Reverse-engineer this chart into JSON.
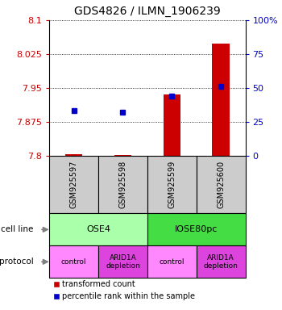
{
  "title": "GDS4826 / ILMN_1906239",
  "samples": [
    "GSM925597",
    "GSM925598",
    "GSM925599",
    "GSM925600"
  ],
  "ylim_left": [
    7.8,
    8.1
  ],
  "ylim_right": [
    0,
    100
  ],
  "yticks_left": [
    7.8,
    7.875,
    7.95,
    8.025,
    8.1
  ],
  "ytick_labels_left": [
    "7.8",
    "7.875",
    "7.95",
    "8.025",
    "8.1"
  ],
  "yticks_right": [
    0,
    25,
    50,
    75,
    100
  ],
  "ytick_labels_right": [
    "0",
    "25",
    "50",
    "75",
    "100%"
  ],
  "transformed_counts": [
    7.802,
    7.801,
    7.935,
    8.048
  ],
  "tc_base": 7.8,
  "percentile_ranks": [
    33,
    32,
    44,
    51
  ],
  "cell_line_labels": [
    "OSE4",
    "IOSE80pc"
  ],
  "cell_line_spans": [
    [
      0,
      2
    ],
    [
      2,
      4
    ]
  ],
  "cell_line_colors": [
    "#aaffaa",
    "#44dd44"
  ],
  "protocol_labels": [
    "control",
    "ARID1A\ndepletion",
    "control",
    "ARID1A\ndepletion"
  ],
  "protocol_colors": [
    "#ff88ff",
    "#dd44dd",
    "#ff88ff",
    "#dd44dd"
  ],
  "sample_box_color": "#cccccc",
  "red_color": "#cc0000",
  "blue_color": "#0000cc",
  "legend_red_label": "transformed count",
  "legend_blue_label": "percentile rank within the sample",
  "bar_width": 0.35
}
